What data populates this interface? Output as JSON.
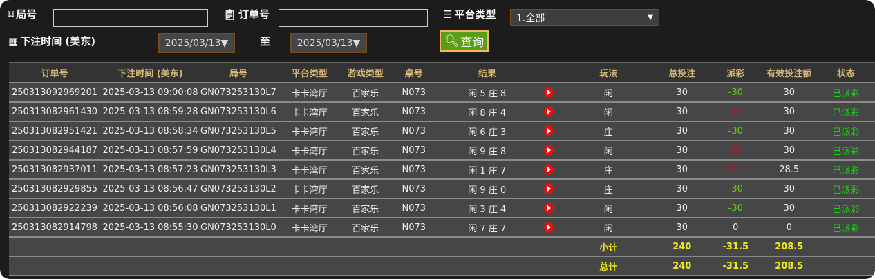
{
  "filters": {
    "round_label": "局号",
    "round_value": "",
    "order_label": "订单号",
    "order_value": "",
    "platform_label": "平台类型",
    "platform_value": "1.全部",
    "time_label": "下注时间 (美东)",
    "date_from": "2025/03/13▼",
    "to_label": "至",
    "date_to": "2025/03/13▼",
    "query_label": "查询"
  },
  "columns": [
    "订单号",
    "下注时间 (美东)",
    "局号",
    "平台类型",
    "游戏类型",
    "桌号",
    "结果",
    "",
    "玩法",
    "总投注",
    "派彩",
    "有效投注额",
    "状态"
  ],
  "rows": [
    {
      "order": "250313092969201",
      "time": "2025-03-13 09:00:08",
      "round": "GN073253130L7",
      "platform": "卡卡湾厅",
      "game": "百家乐",
      "table": "N073",
      "result": "闲 5 庄 8",
      "play": "闲",
      "bet": "30",
      "payout": "-30",
      "payout_color": "#5ed010",
      "valid": "30",
      "status": "已派彩"
    },
    {
      "order": "250313082961430",
      "time": "2025-03-13 08:59:28",
      "round": "GN073253130L6",
      "platform": "卡卡湾厅",
      "game": "百家乐",
      "table": "N073",
      "result": "闲 8 庄 4",
      "play": "闲",
      "bet": "30",
      "payout": "30",
      "payout_color": "#c0102a",
      "valid": "30",
      "status": "已派彩"
    },
    {
      "order": "250313082951421",
      "time": "2025-03-13 08:58:34",
      "round": "GN073253130L5",
      "platform": "卡卡湾厅",
      "game": "百家乐",
      "table": "N073",
      "result": "闲 6 庄 3",
      "play": "庄",
      "bet": "30",
      "payout": "-30",
      "payout_color": "#5ed010",
      "valid": "30",
      "status": "已派彩"
    },
    {
      "order": "250313082944187",
      "time": "2025-03-13 08:57:59",
      "round": "GN073253130L4",
      "platform": "卡卡湾厅",
      "game": "百家乐",
      "table": "N073",
      "result": "闲 9 庄 8",
      "play": "闲",
      "bet": "30",
      "payout": "30",
      "payout_color": "#c0102a",
      "valid": "30",
      "status": "已派彩"
    },
    {
      "order": "250313082937011",
      "time": "2025-03-13 08:57:23",
      "round": "GN073253130L3",
      "platform": "卡卡湾厅",
      "game": "百家乐",
      "table": "N073",
      "result": "闲 1 庄 7",
      "play": "庄",
      "bet": "30",
      "payout": "28.5",
      "payout_color": "#c0102a",
      "valid": "28.5",
      "status": "已派彩"
    },
    {
      "order": "250313082929855",
      "time": "2025-03-13 08:56:47",
      "round": "GN073253130L2",
      "platform": "卡卡湾厅",
      "game": "百家乐",
      "table": "N073",
      "result": "闲 9 庄 0",
      "play": "庄",
      "bet": "30",
      "payout": "-30",
      "payout_color": "#5ed010",
      "valid": "30",
      "status": "已派彩"
    },
    {
      "order": "250313082922239",
      "time": "2025-03-13 08:56:08",
      "round": "GN073253130L1",
      "platform": "卡卡湾厅",
      "game": "百家乐",
      "table": "N073",
      "result": "闲 3 庄 4",
      "play": "闲",
      "bet": "30",
      "payout": "-30",
      "payout_color": "#5ed010",
      "valid": "30",
      "status": "已派彩"
    },
    {
      "order": "250313082914798",
      "time": "2025-03-13 08:55:30",
      "round": "GN073253130L0",
      "platform": "卡卡湾厅",
      "game": "百家乐",
      "table": "N073",
      "result": "闲 7 庄 7",
      "play": "闲",
      "bet": "30",
      "payout": "0",
      "payout_color": "#eeeeee",
      "valid": "0",
      "status": "已派彩"
    }
  ],
  "subtotal": {
    "label": "小计",
    "bet": "240",
    "payout": "-31.5",
    "valid": "208.5"
  },
  "total": {
    "label": "总计",
    "bet": "240",
    "payout": "-31.5",
    "valid": "208.5"
  }
}
